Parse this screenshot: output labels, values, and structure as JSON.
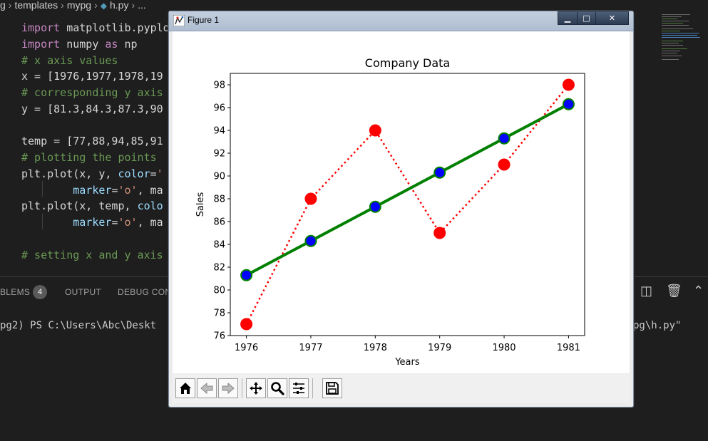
{
  "breadcrumb": [
    "g",
    "templates",
    "mypg",
    "h.py",
    "..."
  ],
  "editor": {
    "lines": [
      {
        "segments": [
          {
            "t": "import",
            "c": "kw"
          },
          {
            "t": " matplotlib.pyplo",
            "c": ""
          }
        ]
      },
      {
        "segments": [
          {
            "t": "import",
            "c": "kw"
          },
          {
            "t": " numpy ",
            "c": ""
          },
          {
            "t": "as",
            "c": "kw"
          },
          {
            "t": " np",
            "c": ""
          }
        ]
      },
      {
        "segments": [
          {
            "t": "# x axis values",
            "c": "cm"
          }
        ]
      },
      {
        "segments": [
          {
            "t": "x = [1976,1977,1978,19",
            "c": ""
          }
        ]
      },
      {
        "segments": [
          {
            "t": "# corresponding y axis",
            "c": "cm"
          }
        ]
      },
      {
        "segments": [
          {
            "t": "y = [81.3,84.3,87.3,90",
            "c": ""
          }
        ]
      },
      {
        "segments": [
          {
            "t": "",
            "c": ""
          }
        ]
      },
      {
        "segments": [
          {
            "t": "temp = [77,88,94,85,91",
            "c": ""
          }
        ]
      },
      {
        "segments": [
          {
            "t": "# plotting the points",
            "c": "cm"
          }
        ]
      },
      {
        "segments": [
          {
            "t": "plt.plot(x, y, ",
            "c": ""
          },
          {
            "t": "color",
            "c": "attr"
          },
          {
            "t": "=",
            "c": ""
          },
          {
            "t": "'",
            "c": "str"
          }
        ]
      },
      {
        "segments": [
          {
            "t": "        ",
            "c": ""
          },
          {
            "t": "marker",
            "c": "attr"
          },
          {
            "t": "=",
            "c": ""
          },
          {
            "t": "'o'",
            "c": "str"
          },
          {
            "t": ", ma",
            "c": ""
          }
        ]
      },
      {
        "segments": [
          {
            "t": "plt.plot(x, temp, ",
            "c": ""
          },
          {
            "t": "colo",
            "c": "attr"
          }
        ]
      },
      {
        "segments": [
          {
            "t": "        ",
            "c": ""
          },
          {
            "t": "marker",
            "c": "attr"
          },
          {
            "t": "=",
            "c": ""
          },
          {
            "t": "'o'",
            "c": "str"
          },
          {
            "t": ", ma",
            "c": ""
          }
        ]
      },
      {
        "segments": [
          {
            "t": "",
            "c": ""
          }
        ]
      },
      {
        "segments": [
          {
            "t": "# setting x and y axis",
            "c": "cm"
          }
        ]
      }
    ]
  },
  "panel": {
    "tabs": [
      "BLEMS",
      "OUTPUT",
      "DEBUG CON"
    ],
    "problems_count": "4"
  },
  "terminal": {
    "prompt": "pg2) PS C:\\Users\\Abc\\Deskt",
    "right_text": "pg\\h.py\""
  },
  "window": {
    "title": "Figure 1",
    "min_symbol": "▁",
    "max_symbol": "□",
    "close_symbol": "✕"
  },
  "toolbar_buttons": [
    "home-icon",
    "back-arrow-icon",
    "forward-arrow-icon",
    "pan-icon",
    "zoom-icon",
    "configure-subplots-icon",
    "save-icon"
  ],
  "chart_data": {
    "type": "line",
    "title": "Company Data",
    "xlabel": "Years",
    "ylabel": "Sales",
    "x": [
      1976,
      1977,
      1978,
      1979,
      1980,
      1981
    ],
    "xlim": [
      1975.75,
      1981.25
    ],
    "ylim": [
      76,
      99
    ],
    "yticks": [
      76,
      78,
      80,
      82,
      84,
      86,
      88,
      90,
      92,
      94,
      96,
      98
    ],
    "xticks": [
      1976,
      1977,
      1978,
      1979,
      1980,
      1981
    ],
    "grid": false,
    "series": [
      {
        "values": [
          81.3,
          84.3,
          87.3,
          90.3,
          93.3,
          96.3
        ],
        "line_color": "#008000",
        "line_style": "solid",
        "marker_color": "#0000ff",
        "marker_edge": "#008000"
      },
      {
        "values": [
          77,
          88,
          94,
          85,
          91,
          98
        ],
        "line_color": "#ff0000",
        "line_style": "dotted",
        "marker_color": "#ff0000",
        "marker_edge": "#ff0000"
      }
    ]
  }
}
